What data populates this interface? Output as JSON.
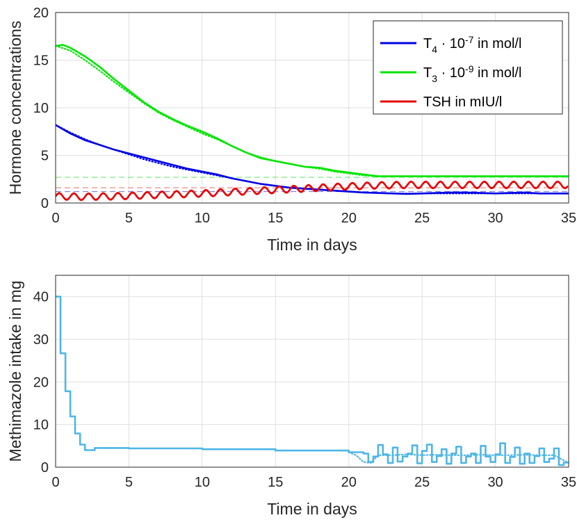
{
  "chart_data": [
    {
      "type": "line",
      "xlabel": "Time in days",
      "ylabel": "Hormone concentrations",
      "xlim": [
        0,
        35
      ],
      "ylim": [
        0,
        20
      ],
      "xticks": [
        "0",
        "5",
        "10",
        "15",
        "20",
        "25",
        "30",
        "35"
      ],
      "yticks": [
        "0",
        "5",
        "10",
        "15",
        "20"
      ],
      "grid": true,
      "legend_position": "top-right",
      "legend": [
        {
          "base": "T",
          "sub": "4",
          "mid": " · 10",
          "sup": "-7",
          "tail": " in mol/l",
          "color": "#0000e6"
        },
        {
          "base": "T",
          "sub": "3",
          "mid": " · 10",
          "sup": "-9",
          "tail": " in mol/l",
          "color": "#00e600"
        },
        {
          "base": "TSH in mIU/l",
          "sub": "",
          "mid": "",
          "sup": "",
          "tail": "",
          "color": "#e60000"
        }
      ],
      "series": [
        {
          "name": "T4 measured",
          "color": "#0000e6",
          "style": "solid",
          "x": [
            0,
            1,
            2,
            3,
            4,
            5,
            6,
            7,
            8,
            9,
            10,
            11,
            12,
            13,
            14,
            15,
            16,
            17,
            18,
            19,
            20,
            21,
            22,
            23,
            24,
            25,
            26,
            27,
            28,
            29,
            30,
            31,
            32,
            33,
            34,
            35
          ],
          "y": [
            8.2,
            7.3,
            6.6,
            6.1,
            5.6,
            5.2,
            4.8,
            4.4,
            4.0,
            3.6,
            3.3,
            3.0,
            2.6,
            2.3,
            2.0,
            1.8,
            1.6,
            1.5,
            1.4,
            1.3,
            1.2,
            1.1,
            1.05,
            1.0,
            0.95,
            1.0,
            1.05,
            1.1,
            1.1,
            1.05,
            1.0,
            1.05,
            1.1,
            1.0,
            1.0,
            1.0
          ]
        },
        {
          "name": "T4 model",
          "color": "#0000e6",
          "style": "dotted",
          "x": [
            0,
            1,
            2,
            3,
            4,
            5,
            6,
            7,
            8,
            9,
            10,
            11,
            12,
            13,
            14,
            15,
            16,
            17,
            18,
            19,
            20,
            21,
            22,
            23,
            24,
            25,
            26,
            27,
            28,
            29,
            30,
            31,
            32,
            33,
            34,
            35
          ],
          "y": [
            8.2,
            7.4,
            6.7,
            6.1,
            5.6,
            5.1,
            4.6,
            4.2,
            3.8,
            3.5,
            3.2,
            2.9,
            2.6,
            2.3,
            2.0,
            1.8,
            1.6,
            1.5,
            1.4,
            1.3,
            1.2,
            1.1,
            1.05,
            1.0,
            1.0,
            1.0,
            1.0,
            1.0,
            1.0,
            1.0,
            1.0,
            1.0,
            1.0,
            1.0,
            1.0,
            1.0
          ]
        },
        {
          "name": "T3 measured",
          "color": "#00e600",
          "style": "solid",
          "x": [
            0,
            0.5,
            1,
            2,
            3,
            4,
            5,
            6,
            7,
            8,
            9,
            10,
            11,
            12,
            13,
            14,
            15,
            16,
            17,
            18,
            19,
            20,
            21,
            22,
            23,
            24,
            25,
            26,
            27,
            28,
            29,
            30,
            31,
            32,
            33,
            34,
            35
          ],
          "y": [
            16.5,
            16.6,
            16.3,
            15.4,
            14.3,
            13.0,
            11.8,
            10.6,
            9.6,
            8.8,
            8.1,
            7.5,
            6.8,
            6.0,
            5.3,
            4.7,
            4.4,
            4.1,
            3.8,
            3.7,
            3.4,
            3.2,
            3.0,
            2.8,
            2.8,
            2.8,
            2.8,
            2.8,
            2.8,
            2.8,
            2.8,
            2.8,
            2.8,
            2.8,
            2.8,
            2.8,
            2.8
          ]
        },
        {
          "name": "T3 model",
          "color": "#00e600",
          "style": "dotted",
          "x": [
            0,
            1,
            2,
            3,
            4,
            5,
            6,
            7,
            8,
            9,
            10,
            11,
            12,
            13,
            14,
            15,
            16,
            17,
            18,
            19,
            20,
            21,
            22,
            23,
            24,
            25,
            26,
            27,
            28,
            29,
            30,
            31,
            32,
            33,
            34,
            35
          ],
          "y": [
            16.5,
            16.0,
            15.0,
            13.9,
            12.7,
            11.6,
            10.5,
            9.5,
            8.7,
            8.0,
            7.3,
            6.7,
            6.0,
            5.3,
            4.8,
            4.4,
            4.1,
            3.8,
            3.6,
            3.3,
            3.1,
            2.9,
            2.8,
            2.8,
            2.8,
            2.8,
            2.8,
            2.8,
            2.8,
            2.8,
            2.8,
            2.8,
            2.8,
            2.8,
            2.8,
            2.8
          ]
        },
        {
          "name": "TSH measured",
          "color": "#e60000",
          "style": "solid",
          "x": [
            0,
            2,
            4,
            6,
            8,
            10,
            12,
            14,
            16,
            18,
            20,
            22,
            24,
            26,
            28,
            30,
            32,
            34,
            35
          ],
          "y": [
            0.7,
            0.65,
            0.7,
            0.8,
            0.9,
            1.0,
            1.15,
            1.3,
            1.45,
            1.6,
            1.75,
            1.85,
            1.9,
            1.9,
            1.9,
            1.9,
            1.9,
            1.9,
            1.9
          ],
          "oscillation": 0.35,
          "period": 1
        },
        {
          "name": "TSH model",
          "color": "#e60000",
          "style": "dotted",
          "x": [
            0,
            2,
            4,
            6,
            8,
            10,
            12,
            14,
            16,
            18,
            20,
            22,
            24,
            26,
            28,
            30,
            32,
            34,
            35
          ],
          "y": [
            0.7,
            0.65,
            0.7,
            0.8,
            0.9,
            1.0,
            1.15,
            1.3,
            1.45,
            1.6,
            1.75,
            1.85,
            1.9,
            1.9,
            1.9,
            1.9,
            1.9,
            1.9,
            1.9
          ],
          "oscillation": 0.3,
          "period": 1
        }
      ],
      "reference_lines": [
        {
          "y": 2.7,
          "color": "#7fe67f"
        },
        {
          "y": 1.6,
          "color": "#e67f7f"
        },
        {
          "y": 1.2,
          "color": "#7f7fe6"
        }
      ]
    },
    {
      "type": "line",
      "xlabel": "Time in days",
      "ylabel": "Methimazole intake in mg",
      "xlim": [
        0,
        35
      ],
      "ylim": [
        0,
        45
      ],
      "xticks": [
        "0",
        "5",
        "10",
        "15",
        "20",
        "25",
        "30",
        "35"
      ],
      "yticks": [
        "0",
        "10",
        "20",
        "30",
        "40"
      ],
      "grid": true,
      "series": [
        {
          "name": "Methimazole intake",
          "color": "#4db6e6",
          "style": "solid",
          "x": [
            0,
            0.33,
            0.67,
            1.0,
            1.33,
            1.67,
            2.0,
            2.67,
            5,
            10,
            15,
            20,
            21,
            21.33,
            21.67,
            22,
            22.33,
            22.67,
            23,
            23.33,
            23.67,
            24,
            24.33,
            24.67,
            25,
            25.33,
            25.67,
            26,
            26.33,
            26.67,
            27,
            27.33,
            27.67,
            28,
            28.33,
            28.67,
            29,
            29.33,
            29.67,
            30,
            30.33,
            30.67,
            31,
            31.33,
            31.67,
            32,
            32.33,
            32.67,
            33,
            33.33,
            33.67,
            34,
            34.33,
            34.67,
            35
          ],
          "y": [
            40,
            26.7,
            17.8,
            11.9,
            7.9,
            5.3,
            4.0,
            4.5,
            4.4,
            4.2,
            3.9,
            3.5,
            3.2,
            1.2,
            2.5,
            5.2,
            3.0,
            1.0,
            4.6,
            1.3,
            2.5,
            3.2,
            5.1,
            0.9,
            3.8,
            5.3,
            1.2,
            2.6,
            4.2,
            0.8,
            3.2,
            4.8,
            1.0,
            2.5,
            3.2,
            1.0,
            5.0,
            2.5,
            1.2,
            3.0,
            5.6,
            1.0,
            2.4,
            4.6,
            0.8,
            3.2,
            1.0,
            2.6,
            4.4,
            1.2,
            2.0,
            4.4,
            0.5,
            1.1,
            1.1
          ],
          "step": true
        },
        {
          "name": "Methimazole model",
          "color": "#4db6e6",
          "style": "dotted",
          "x": [
            20,
            20.5,
            21,
            21.5,
            22,
            23,
            24,
            25,
            26,
            27,
            28,
            29,
            30,
            31,
            32,
            33,
            34,
            35
          ],
          "y": [
            3.5,
            2.8,
            1.2,
            1.0,
            2.8,
            2.8,
            3.0,
            2.8,
            2.9,
            2.8,
            2.8,
            2.9,
            2.8,
            2.8,
            2.9,
            2.8,
            2.8,
            1.0
          ],
          "step": false
        }
      ]
    }
  ]
}
